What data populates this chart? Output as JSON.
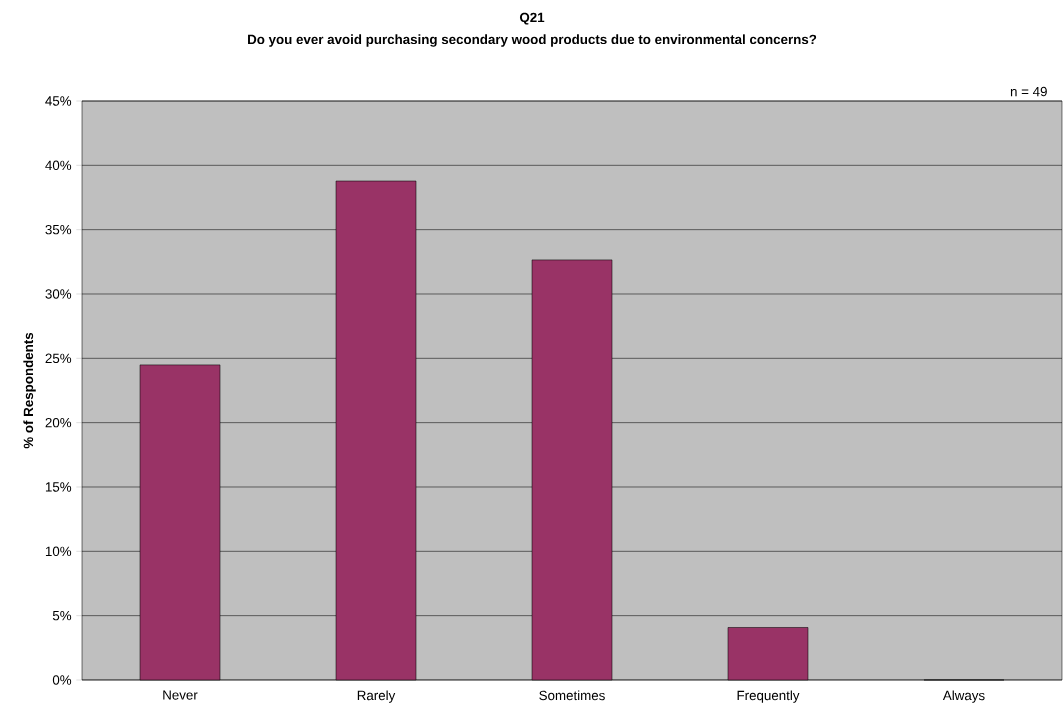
{
  "chart_data": {
    "type": "bar",
    "title": "Q21",
    "subtitle": "Do you ever avoid purchasing secondary wood products due to environmental concerns?",
    "ylabel": "% of Respondents",
    "categories": [
      "Never",
      "Rarely",
      "Sometimes",
      "Frequently",
      "Always"
    ],
    "values": [
      24.49,
      38.78,
      32.65,
      4.08,
      0
    ],
    "color": "#993366",
    "ylim": [
      0,
      45
    ],
    "yticks": [
      {
        "value": 0,
        "label": "0%"
      },
      {
        "value": 5,
        "label": "5%"
      },
      {
        "value": 10,
        "label": "10%"
      },
      {
        "value": 15,
        "label": "15%"
      },
      {
        "value": 20,
        "label": "20%"
      },
      {
        "value": 25,
        "label": "25%"
      },
      {
        "value": 30,
        "label": "30%"
      },
      {
        "value": 35,
        "label": "35%"
      },
      {
        "value": 40,
        "label": "40%"
      },
      {
        "value": 45,
        "label": "45%"
      }
    ],
    "grid": "y",
    "annotations": [
      "n = 49"
    ]
  }
}
